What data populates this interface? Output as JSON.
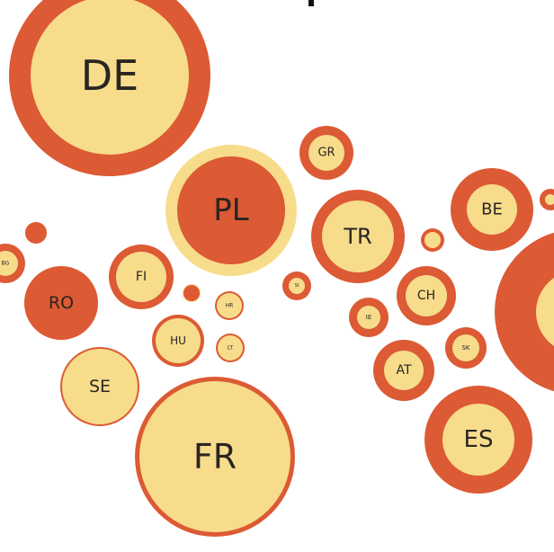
{
  "colors": {
    "orange": "#dc5a34",
    "cream": "#f7dc8c",
    "background": "#ffffff"
  },
  "bubbles": [
    {
      "code": "DE"
    },
    {
      "code": "PL"
    },
    {
      "code": "GR"
    },
    {
      "code": "TR"
    },
    {
      "code": "BE"
    },
    {
      "code": "RO"
    },
    {
      "code": "FI"
    },
    {
      "code": "SE"
    },
    {
      "code": "HU"
    },
    {
      "code": "HR"
    },
    {
      "code": "LT"
    },
    {
      "code": "SI"
    },
    {
      "code": "CH"
    },
    {
      "code": "IE"
    },
    {
      "code": "AT"
    },
    {
      "code": "SK"
    },
    {
      "code": "ES"
    },
    {
      "code": "FR"
    },
    {
      "code": "BG"
    },
    {
      "code": ""
    },
    {
      "code": ""
    },
    {
      "code": ""
    },
    {
      "code": ""
    },
    {
      "code": ""
    }
  ]
}
